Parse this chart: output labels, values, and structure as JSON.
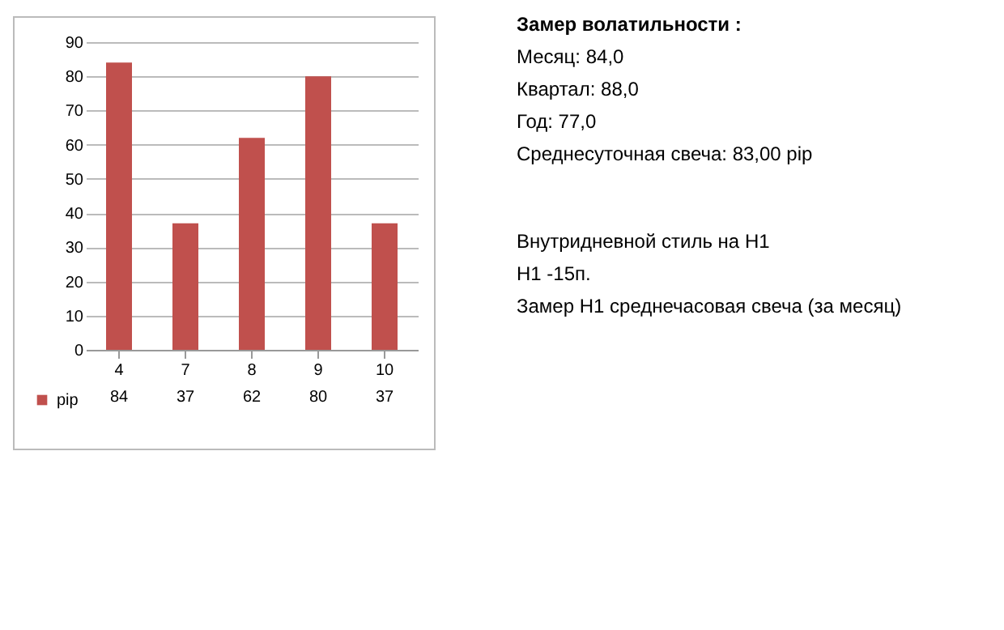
{
  "chart_data": {
    "type": "bar",
    "categories": [
      "4",
      "7",
      "8",
      "9",
      "10"
    ],
    "series": [
      {
        "name": "pip",
        "color": "#c0504d",
        "values": [
          84,
          37,
          62,
          80,
          37
        ]
      }
    ],
    "ylim": [
      0,
      90
    ],
    "yticks": [
      0,
      10,
      20,
      30,
      40,
      50,
      60,
      70,
      80,
      90
    ],
    "grid": "y",
    "legend": "bottom left",
    "data_labels": true,
    "annotations": [
      "Замер  волатильности :",
      "Месяц: 84,0",
      "Квартал: 88,0",
      "Год: 77,0",
      "Среднесуточная свеча: 83,00 pip",
      "Внутридневной стиль на H1",
      "H1 -15п.",
      "Замер H1 среднечасовая свеча (за месяц)"
    ]
  }
}
